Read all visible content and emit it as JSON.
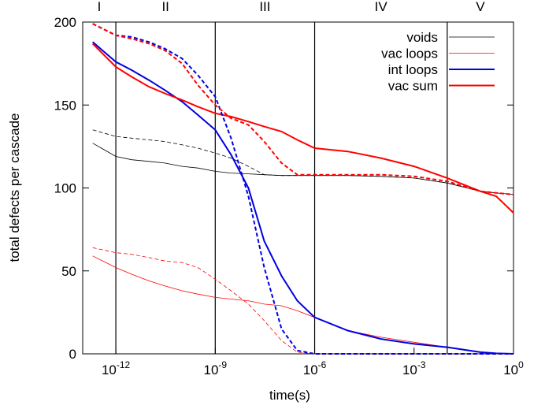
{
  "chart_data": {
    "type": "line",
    "xlabel": "time(s)",
    "ylabel": "total defects per cascade",
    "xscale": "log",
    "xlim": [
      1e-13,
      1
    ],
    "ylim": [
      0,
      200
    ],
    "xticks": [
      {
        "value": 1e-12,
        "label": "10",
        "exponent": "-12"
      },
      {
        "value": 1e-09,
        "label": "10",
        "exponent": "-9"
      },
      {
        "value": 1e-06,
        "label": "10",
        "exponent": "-6"
      },
      {
        "value": 0.001,
        "label": "10",
        "exponent": "-3"
      },
      {
        "value": 1,
        "label": "10",
        "exponent": "0"
      }
    ],
    "yticks": [
      0,
      50,
      100,
      150,
      200
    ],
    "region_boundaries": [
      1e-12,
      1e-09,
      1e-06,
      0.01
    ],
    "region_labels": [
      "I",
      "II",
      "III",
      "IV",
      "V"
    ],
    "legend": "upper right",
    "x": [
      2e-13,
      1e-12,
      3e-12,
      1e-11,
      3e-11,
      1e-10,
      3e-10,
      1e-09,
      3e-09,
      1e-08,
      3e-08,
      1e-07,
      3e-07,
      1e-06,
      1e-05,
      0.0001,
      0.001,
      0.01,
      0.1,
      0.3,
      1
    ],
    "series": [
      {
        "name": "voids",
        "color": "#000000",
        "width": 0.8,
        "dashed": false,
        "values": [
          127,
          119,
          117,
          116,
          115,
          113,
          112,
          110,
          109,
          108.5,
          108,
          107.5,
          107.5,
          107.5,
          107.5,
          107,
          106,
          103,
          98,
          97,
          96
        ]
      },
      {
        "name": "vac loops",
        "color": "#ff0000",
        "width": 0.8,
        "dashed": false,
        "values": [
          59,
          52,
          48,
          44,
          41,
          38,
          36,
          34,
          33,
          32,
          30,
          29,
          26,
          22,
          14,
          10,
          7,
          4,
          1,
          0.3,
          0
        ]
      },
      {
        "name": "int loops",
        "color": "#0000e0",
        "width": 2,
        "dashed": false,
        "values": [
          188,
          176,
          171,
          165,
          159,
          152,
          144,
          135,
          120,
          100,
          68,
          47,
          32,
          22,
          14,
          9,
          6,
          4,
          1,
          0.3,
          0
        ]
      },
      {
        "name": "vac sum",
        "color": "#ff0000",
        "width": 2,
        "dashed": false,
        "values": [
          187,
          173,
          167,
          161,
          157,
          153,
          149,
          145,
          143,
          140,
          137,
          134,
          129,
          124,
          122,
          118,
          113,
          106,
          98,
          95,
          85
        ]
      },
      {
        "color": "#000000",
        "width": 0.8,
        "dashed": true,
        "values": [
          135,
          131,
          130,
          129,
          128,
          126,
          124,
          121,
          118,
          113,
          108,
          107.5,
          107.5,
          107.5,
          107.5,
          107,
          106,
          103,
          98,
          97,
          96
        ]
      },
      {
        "color": "#ff0000",
        "width": 0.8,
        "dashed": true,
        "values": [
          64,
          61,
          60,
          58,
          56,
          55,
          52,
          45,
          38,
          30,
          20,
          8,
          1,
          0,
          0,
          0,
          0,
          0,
          0,
          0,
          0
        ]
      },
      {
        "color": "#0000e0",
        "width": 2,
        "dashed": true,
        "values": [
          199,
          192,
          191,
          188,
          184,
          178,
          168,
          155,
          130,
          95,
          52,
          15,
          2,
          0,
          0,
          0,
          0,
          0,
          0,
          0,
          0
        ]
      },
      {
        "color": "#ff0000",
        "width": 2,
        "dashed": true,
        "values": [
          199,
          192,
          190,
          187,
          183,
          175,
          162,
          150,
          142,
          138,
          128,
          115,
          108,
          108,
          108,
          108,
          107,
          104,
          98,
          97,
          96
        ]
      }
    ]
  }
}
